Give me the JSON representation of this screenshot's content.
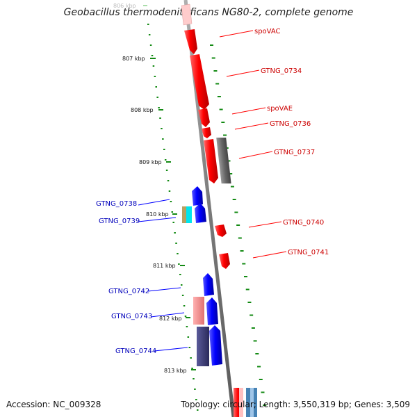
{
  "title": "Geobacillus thermodenitrificans NG80-2, complete genome",
  "footer": {
    "accession": "Accession: NC_009328",
    "summary": "Topology: circular; Length: 3,550,319 bp; Genes: 3,509"
  },
  "colors": {
    "axis": "#808080",
    "tick": "#138a13",
    "forward_gene": "#ff0000",
    "reverse_gene": "#0000ff",
    "forward_label": "#cc0000",
    "reverse_label": "#0000bb",
    "scale_label": "#111111"
  },
  "scale_labels": [
    "806 kbp",
    "807 kbp",
    "808 kbp",
    "809 kbp",
    "810 kbp",
    "811 kbp",
    "812 kbp",
    "813 kbp"
  ],
  "forward_genes": [
    {
      "label": "spoVAC",
      "color": "#ff0000"
    },
    {
      "label": "GTNG_0734",
      "color": "#ff0000"
    },
    {
      "label": "spoVAE",
      "color": "#ff0000"
    },
    {
      "label": "GTNG_0736",
      "color": "#ff0000"
    },
    {
      "label": "GTNG_0737",
      "color": "#ff0000"
    },
    {
      "label": "GTNG_0740",
      "color": "#ff0000"
    },
    {
      "label": "GTNG_0741",
      "color": "#ff0000"
    }
  ],
  "reverse_genes": [
    {
      "label": "GTNG_0738",
      "color": "#0000ff"
    },
    {
      "label": "GTNG_0739",
      "color": "#0000ff"
    },
    {
      "label": "GTNG_0742",
      "color": "#0000ff"
    },
    {
      "label": "GTNG_0743",
      "color": "#0000ff"
    },
    {
      "label": "GTNG_0744",
      "color": "#0000ff"
    }
  ],
  "feature_colors": {
    "pseudo_gray": "#666666",
    "cyan": "#00e5ee",
    "tan": "#b8a060",
    "pink": "#f08080",
    "navy": "#3a3a7a",
    "steelblue": "#4682b4"
  }
}
